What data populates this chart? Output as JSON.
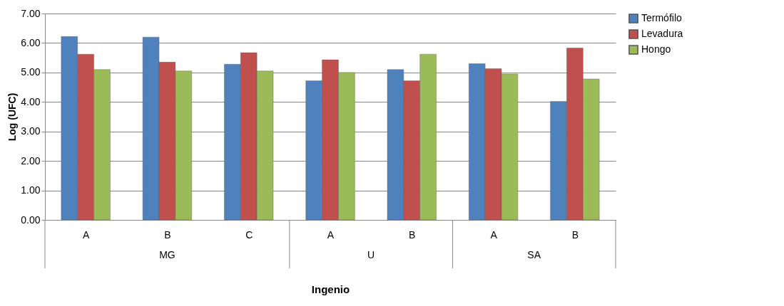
{
  "chart_data": {
    "type": "bar",
    "xlabel": "Ingenio",
    "ylabel": "Log (UFC)",
    "categories": [
      "A",
      "B",
      "C",
      "A",
      "B",
      "A",
      "B"
    ],
    "annotations": [
      "MG",
      "U",
      "SA"
    ],
    "series": [
      {
        "name": "Termófilo",
        "color": "#4f81bd",
        "values": [
          6.22,
          6.2,
          5.28,
          4.72,
          5.1,
          5.3,
          4.02
        ]
      },
      {
        "name": "Levadura",
        "color": "#c0504d",
        "values": [
          5.62,
          5.35,
          5.67,
          5.43,
          4.72,
          5.13,
          5.83
        ]
      },
      {
        "name": "Hongo",
        "color": "#9bbb59",
        "values": [
          5.1,
          5.05,
          5.05,
          5.0,
          5.62,
          4.95,
          4.78
        ]
      }
    ],
    "ylim": [
      0,
      7
    ],
    "yticks": [
      {
        "value": 0,
        "label": "0.00"
      },
      {
        "value": 1,
        "label": "1.00"
      },
      {
        "value": 2,
        "label": "2.00"
      },
      {
        "value": 3,
        "label": "3.00"
      },
      {
        "value": 4,
        "label": "4.00"
      },
      {
        "value": 5,
        "label": "5.00"
      },
      {
        "value": 6,
        "label": "6.00"
      },
      {
        "value": 7,
        "label": "7.00"
      }
    ],
    "grid": "y",
    "legend": "right"
  }
}
